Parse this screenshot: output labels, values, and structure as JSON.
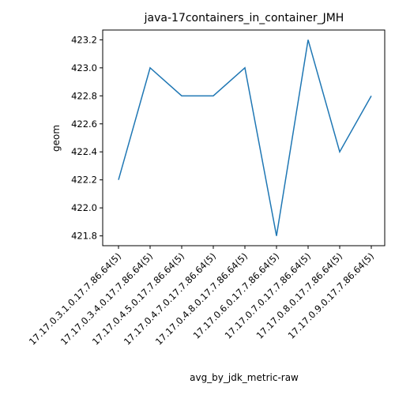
{
  "chart_data": {
    "type": "line",
    "title": "java-17containers_in_container_JMH",
    "xlabel": "avg_by_jdk_metric-raw",
    "ylabel": "geom",
    "categories": [
      "17.17.0.3.1.0.17.7.86.64(5)",
      "17.17.0.3.4.0.17.7.86.64(5)",
      "17.17.0.4.5.0.17.7.86.64(5)",
      "17.17.0.4.7.0.17.7.86.64(5)",
      "17.17.0.4.8.0.17.7.86.64(5)",
      "17.17.0.6.0.17.7.86.64(5)",
      "17.17.0.7.0.17.7.86.64(5)",
      "17.17.0.8.0.17.7.86.64(5)",
      "17.17.0.9.0.17.7.86.64(5)"
    ],
    "series": [
      {
        "values": [
          422.2,
          423.0,
          422.8,
          422.8,
          423.0,
          421.8,
          423.2,
          422.4,
          422.8
        ],
        "color": "#1f77b4"
      }
    ],
    "yticks": [
      "421.8",
      "422.0",
      "422.2",
      "422.4",
      "422.6",
      "422.8",
      "423.0",
      "423.2"
    ],
    "ylim": [
      421.73,
      423.27
    ],
    "grid": false,
    "legend": "none"
  }
}
